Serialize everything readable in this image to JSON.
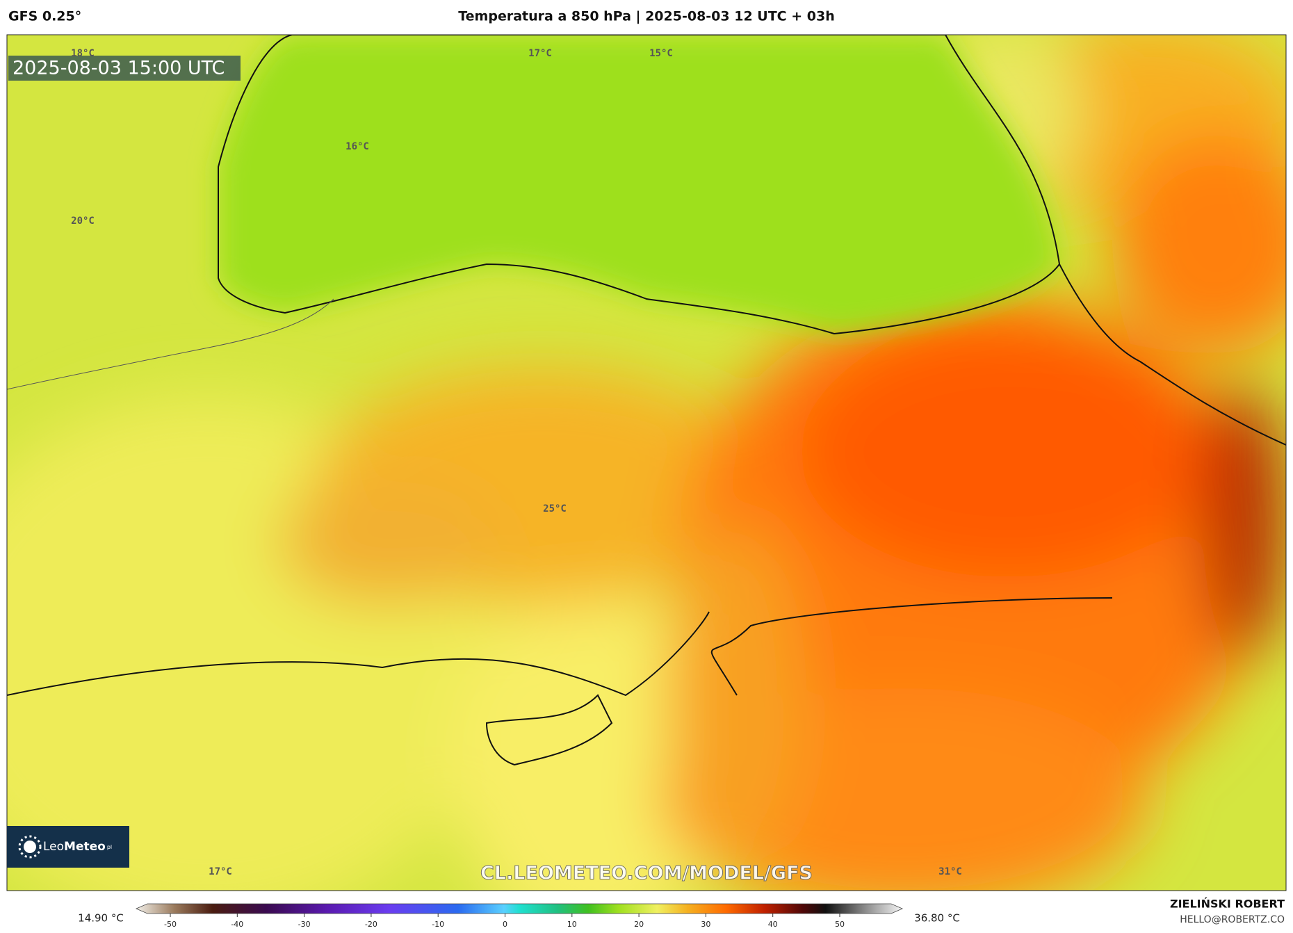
{
  "header": {
    "model": "GFS 0.25°",
    "title": "Temperatura a 850 hPa | 2025-08-03 12 UTC + 03h"
  },
  "map": {
    "timestamp": "2025-08-03 15:00 UTC",
    "labels": [
      "18°C",
      "17°C",
      "15°C",
      "16°C",
      "20°C",
      "25°C",
      "17°C",
      "31°C"
    ],
    "watermark": "CL.LEOMETEO.COM/MODEL/GFS",
    "logo_leo": "Leo",
    "logo_meteo": "Meteo",
    "logo_tld": "pl"
  },
  "colorbar": {
    "min_label": "14.90 °C",
    "max_label": "36.80 °C",
    "ticks": [
      -50,
      -40,
      -30,
      -20,
      -10,
      0,
      10,
      20,
      30,
      40,
      50
    ]
  },
  "credits": {
    "author": "ZIELIŃSKI ROBERT",
    "email": "HELLO@ROBERTZ.CO"
  }
}
